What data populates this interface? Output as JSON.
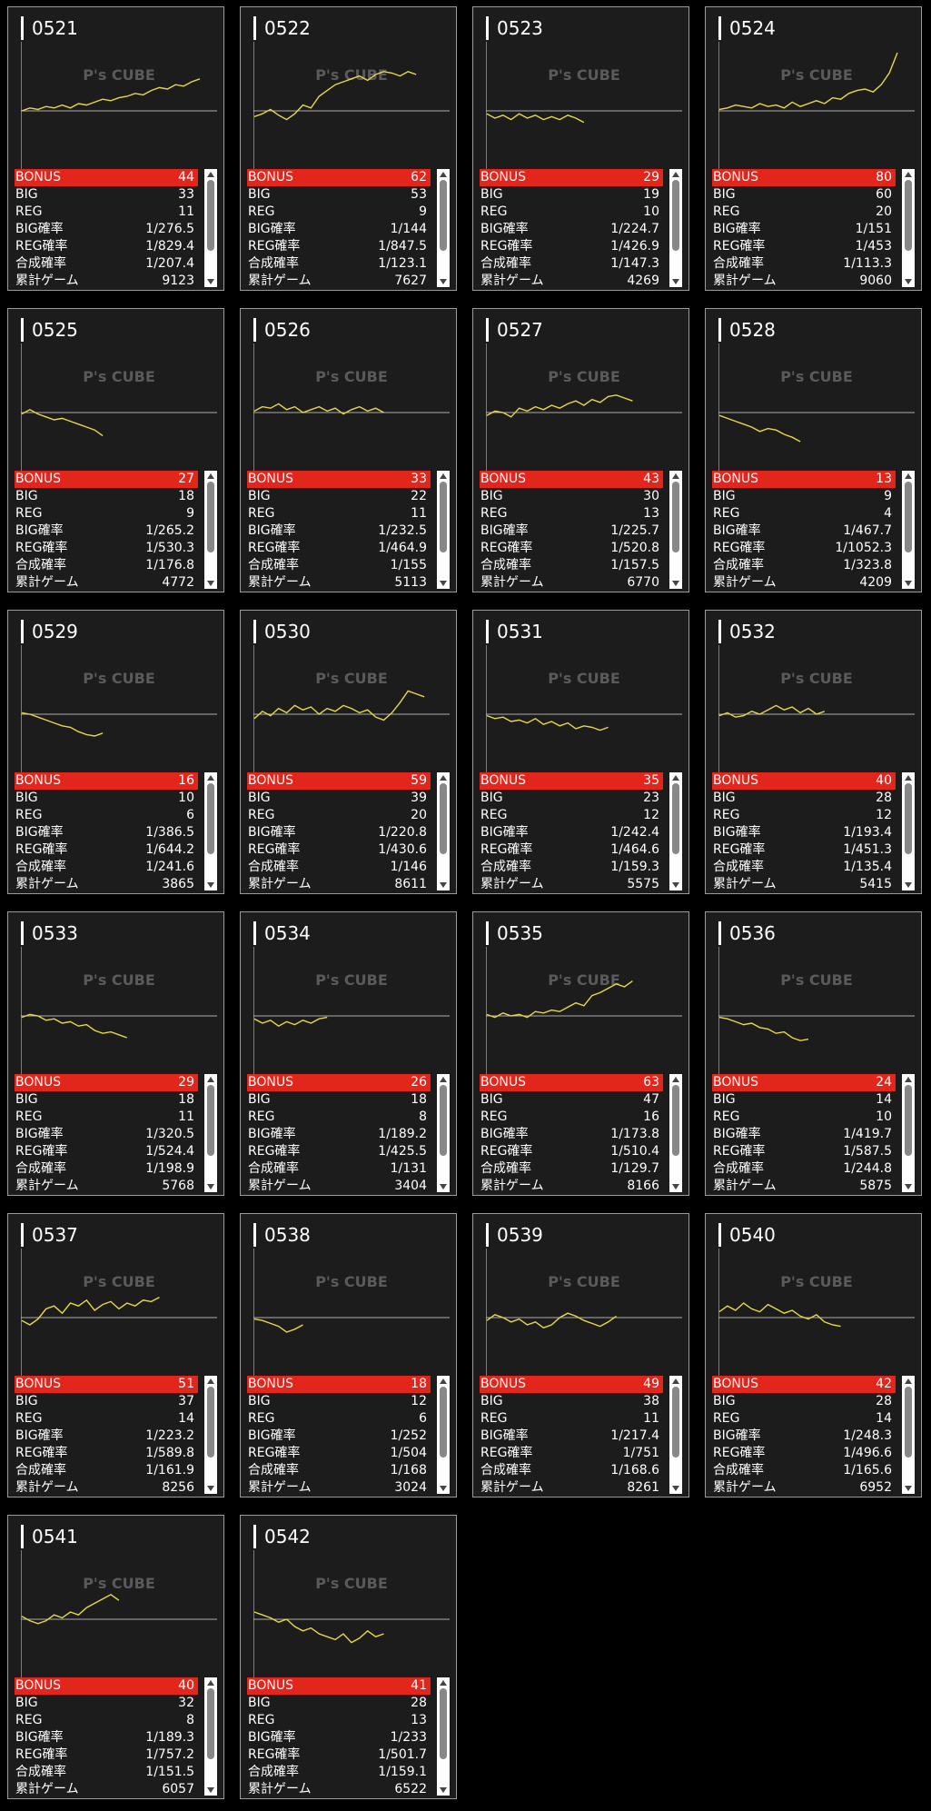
{
  "brand": "P's CUBE",
  "labels": {
    "bonus": "BONUS",
    "big": "BIG",
    "reg": "REG",
    "big_rate": "BIG確率",
    "reg_rate": "REG確率",
    "total_rate": "合成確率",
    "games": "累計ゲーム"
  },
  "colors": {
    "bonus_bar": "#e2261c",
    "line": "#e6d84a",
    "card_bg": "#1c1c1c"
  },
  "machines": [
    {
      "id": "0521",
      "bonus": "44",
      "big": "33",
      "reg": "11",
      "big_rate": "1/276.5",
      "reg_rate": "1/829.4",
      "total_rate": "1/207.4",
      "games": "9123"
    },
    {
      "id": "0522",
      "bonus": "62",
      "big": "53",
      "reg": "9",
      "big_rate": "1/144",
      "reg_rate": "1/847.5",
      "total_rate": "1/123.1",
      "games": "7627"
    },
    {
      "id": "0523",
      "bonus": "29",
      "big": "19",
      "reg": "10",
      "big_rate": "1/224.7",
      "reg_rate": "1/426.9",
      "total_rate": "1/147.3",
      "games": "4269"
    },
    {
      "id": "0524",
      "bonus": "80",
      "big": "60",
      "reg": "20",
      "big_rate": "1/151",
      "reg_rate": "1/453",
      "total_rate": "1/113.3",
      "games": "9060"
    },
    {
      "id": "0525",
      "bonus": "27",
      "big": "18",
      "reg": "9",
      "big_rate": "1/265.2",
      "reg_rate": "1/530.3",
      "total_rate": "1/176.8",
      "games": "4772"
    },
    {
      "id": "0526",
      "bonus": "33",
      "big": "22",
      "reg": "11",
      "big_rate": "1/232.5",
      "reg_rate": "1/464.9",
      "total_rate": "1/155",
      "games": "5113"
    },
    {
      "id": "0527",
      "bonus": "43",
      "big": "30",
      "reg": "13",
      "big_rate": "1/225.7",
      "reg_rate": "1/520.8",
      "total_rate": "1/157.5",
      "games": "6770"
    },
    {
      "id": "0528",
      "bonus": "13",
      "big": "9",
      "reg": "4",
      "big_rate": "1/467.7",
      "reg_rate": "1/1052.3",
      "total_rate": "1/323.8",
      "games": "4209"
    },
    {
      "id": "0529",
      "bonus": "16",
      "big": "10",
      "reg": "6",
      "big_rate": "1/386.5",
      "reg_rate": "1/644.2",
      "total_rate": "1/241.6",
      "games": "3865"
    },
    {
      "id": "0530",
      "bonus": "59",
      "big": "39",
      "reg": "20",
      "big_rate": "1/220.8",
      "reg_rate": "1/430.6",
      "total_rate": "1/146",
      "games": "8611"
    },
    {
      "id": "0531",
      "bonus": "35",
      "big": "23",
      "reg": "12",
      "big_rate": "1/242.4",
      "reg_rate": "1/464.6",
      "total_rate": "1/159.3",
      "games": "5575"
    },
    {
      "id": "0532",
      "bonus": "40",
      "big": "28",
      "reg": "12",
      "big_rate": "1/193.4",
      "reg_rate": "1/451.3",
      "total_rate": "1/135.4",
      "games": "5415"
    },
    {
      "id": "0533",
      "bonus": "29",
      "big": "18",
      "reg": "11",
      "big_rate": "1/320.5",
      "reg_rate": "1/524.4",
      "total_rate": "1/198.9",
      "games": "5768"
    },
    {
      "id": "0534",
      "bonus": "26",
      "big": "18",
      "reg": "8",
      "big_rate": "1/189.2",
      "reg_rate": "1/425.5",
      "total_rate": "1/131",
      "games": "3404"
    },
    {
      "id": "0535",
      "bonus": "63",
      "big": "47",
      "reg": "16",
      "big_rate": "1/173.8",
      "reg_rate": "1/510.4",
      "total_rate": "1/129.7",
      "games": "8166"
    },
    {
      "id": "0536",
      "bonus": "24",
      "big": "14",
      "reg": "10",
      "big_rate": "1/419.7",
      "reg_rate": "1/587.5",
      "total_rate": "1/244.8",
      "games": "5875"
    },
    {
      "id": "0537",
      "bonus": "51",
      "big": "37",
      "reg": "14",
      "big_rate": "1/223.2",
      "reg_rate": "1/589.8",
      "total_rate": "1/161.9",
      "games": "8256"
    },
    {
      "id": "0538",
      "bonus": "18",
      "big": "12",
      "reg": "6",
      "big_rate": "1/252",
      "reg_rate": "1/504",
      "total_rate": "1/168",
      "games": "3024"
    },
    {
      "id": "0539",
      "bonus": "49",
      "big": "38",
      "reg": "11",
      "big_rate": "1/217.4",
      "reg_rate": "1/751",
      "total_rate": "1/168.6",
      "games": "8261"
    },
    {
      "id": "0540",
      "bonus": "42",
      "big": "28",
      "reg": "14",
      "big_rate": "1/248.3",
      "reg_rate": "1/496.6",
      "total_rate": "1/165.6",
      "games": "6952"
    },
    {
      "id": "0541",
      "bonus": "40",
      "big": "32",
      "reg": "8",
      "big_rate": "1/189.3",
      "reg_rate": "1/757.2",
      "total_rate": "1/151.5",
      "games": "6057"
    },
    {
      "id": "0542",
      "bonus": "41",
      "big": "28",
      "reg": "13",
      "big_rate": "1/233",
      "reg_rate": "1/501.7",
      "total_rate": "1/159.1",
      "games": "6522"
    }
  ],
  "sparklines": [
    [
      0,
      2,
      1,
      3,
      2,
      4,
      2,
      5,
      4,
      6,
      8,
      7,
      9,
      10,
      12,
      11,
      14,
      16,
      15,
      18,
      17,
      20,
      22
    ],
    [
      -4,
      -2,
      1,
      -3,
      -6,
      -2,
      4,
      2,
      10,
      14,
      18,
      20,
      22,
      24,
      21,
      25,
      27,
      26,
      24,
      27,
      25
    ],
    [
      -2,
      -5,
      -3,
      -6,
      -2,
      -5,
      -3,
      -6,
      -4,
      -6,
      -3,
      -5,
      -8
    ],
    [
      1,
      2,
      4,
      3,
      2,
      5,
      3,
      4,
      2,
      6,
      3,
      5,
      7,
      5,
      9,
      8,
      12,
      14,
      15,
      13,
      18,
      26,
      40
    ],
    [
      -1,
      2,
      -1,
      -3,
      -5,
      -4,
      -6,
      -8,
      -10,
      -12,
      -16
    ],
    [
      1,
      4,
      3,
      6,
      2,
      4,
      0,
      2,
      4,
      1,
      3,
      -1,
      2,
      4,
      1,
      3,
      0
    ],
    [
      -2,
      1,
      0,
      -3,
      3,
      1,
      4,
      2,
      5,
      3,
      6,
      8,
      5,
      9,
      7,
      11,
      12,
      10,
      8
    ],
    [
      -2,
      -4,
      -6,
      -8,
      -10,
      -13,
      -11,
      -12,
      -15,
      -17,
      -20
    ],
    [
      1,
      0,
      -2,
      -4,
      -6,
      -8,
      -9,
      -12,
      -14,
      -15,
      -13
    ],
    [
      -3,
      2,
      -1,
      4,
      1,
      6,
      3,
      5,
      0,
      4,
      2,
      6,
      4,
      1,
      3,
      -2,
      -4,
      1,
      8,
      16,
      14,
      12
    ],
    [
      -1,
      -3,
      -2,
      -5,
      -4,
      -6,
      -3,
      -7,
      -5,
      -8,
      -6,
      -10,
      -8,
      -9,
      -11,
      -9
    ],
    [
      -1,
      1,
      -2,
      -1,
      2,
      0,
      3,
      6,
      3,
      5,
      1,
      4,
      0,
      2
    ],
    [
      -1,
      1,
      0,
      -3,
      -2,
      -5,
      -4,
      -7,
      -6,
      -10,
      -12,
      -11,
      -13,
      -15
    ],
    [
      -2,
      -5,
      -3,
      -7,
      -4,
      -6,
      -3,
      -5,
      -2,
      -1
    ],
    [
      1,
      -1,
      2,
      0,
      1,
      -1,
      3,
      2,
      4,
      3,
      6,
      9,
      7,
      14,
      16,
      19,
      22,
      20,
      24
    ],
    [
      -1,
      -2,
      -4,
      -6,
      -5,
      -8,
      -9,
      -12,
      -11,
      -15,
      -17,
      -16
    ],
    [
      -2,
      -5,
      -1,
      6,
      8,
      3,
      10,
      8,
      12,
      5,
      9,
      11,
      6,
      10,
      8,
      12,
      11,
      14
    ],
    [
      -1,
      -2,
      -4,
      -6,
      -10,
      -8,
      -5
    ],
    [
      -2,
      2,
      0,
      -3,
      -1,
      -5,
      -3,
      -7,
      -5,
      0,
      3,
      1,
      -2,
      -4,
      -6,
      -3,
      1
    ],
    [
      4,
      8,
      5,
      10,
      6,
      4,
      9,
      6,
      3,
      5,
      1,
      -1,
      2,
      -3,
      -5,
      -6
    ],
    [
      2,
      -1,
      -3,
      -1,
      3,
      1,
      5,
      3,
      8,
      11,
      14,
      17,
      13
    ],
    [
      5,
      3,
      1,
      -2,
      0,
      -5,
      -8,
      -6,
      -10,
      -12,
      -14,
      -10,
      -16,
      -13,
      -8,
      -12,
      -10
    ]
  ]
}
